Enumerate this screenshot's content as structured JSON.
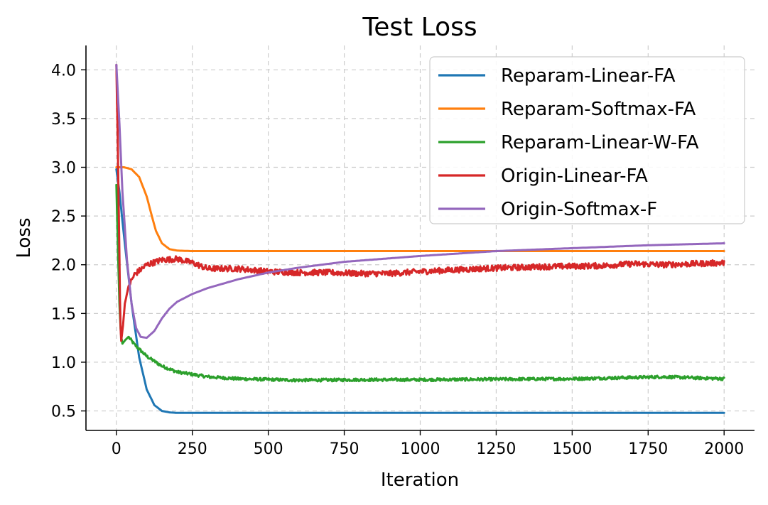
{
  "chart_data": {
    "type": "line",
    "title": "Test Loss",
    "xlabel": "Iteration",
    "ylabel": "Loss",
    "xlim": [
      -100,
      2100
    ],
    "ylim": [
      0.3,
      4.25
    ],
    "xticks": [
      0,
      250,
      500,
      750,
      1000,
      1250,
      1500,
      1750,
      2000
    ],
    "xtick_labels": [
      "0",
      "250",
      "500",
      "750",
      "1000",
      "1250",
      "1500",
      "1750",
      "2000"
    ],
    "yticks": [
      0.5,
      1.0,
      1.5,
      2.0,
      2.5,
      3.0,
      3.5,
      4.0
    ],
    "ytick_labels": [
      "0.5",
      "1.0",
      "1.5",
      "2.0",
      "2.5",
      "3.0",
      "3.5",
      "4.0"
    ],
    "grid": true,
    "legend_position": "top-right",
    "series": [
      {
        "name": "Reparam-Linear-FA",
        "color": "#1f77b4",
        "noise": 0,
        "points": [
          [
            0,
            2.98
          ],
          [
            10,
            2.75
          ],
          [
            25,
            2.3
          ],
          [
            50,
            1.6
          ],
          [
            75,
            1.05
          ],
          [
            100,
            0.72
          ],
          [
            125,
            0.56
          ],
          [
            150,
            0.5
          ],
          [
            175,
            0.485
          ],
          [
            200,
            0.48
          ],
          [
            300,
            0.48
          ],
          [
            500,
            0.48
          ],
          [
            1000,
            0.48
          ],
          [
            1500,
            0.48
          ],
          [
            2000,
            0.48
          ]
        ]
      },
      {
        "name": "Reparam-Softmax-FA",
        "color": "#ff7f0e",
        "noise": 0,
        "points": [
          [
            0,
            3.0
          ],
          [
            25,
            3.0
          ],
          [
            50,
            2.98
          ],
          [
            75,
            2.9
          ],
          [
            100,
            2.7
          ],
          [
            115,
            2.52
          ],
          [
            130,
            2.35
          ],
          [
            150,
            2.22
          ],
          [
            175,
            2.16
          ],
          [
            200,
            2.145
          ],
          [
            250,
            2.14
          ],
          [
            500,
            2.14
          ],
          [
            1000,
            2.14
          ],
          [
            1500,
            2.14
          ],
          [
            2000,
            2.14
          ]
        ]
      },
      {
        "name": "Reparam-Linear-W-FA",
        "color": "#2ca02c",
        "noise": 0.015,
        "points": [
          [
            0,
            2.82
          ],
          [
            5,
            2.2
          ],
          [
            10,
            1.6
          ],
          [
            15,
            1.28
          ],
          [
            20,
            1.19
          ],
          [
            30,
            1.23
          ],
          [
            40,
            1.26
          ],
          [
            60,
            1.18
          ],
          [
            100,
            1.06
          ],
          [
            150,
            0.96
          ],
          [
            200,
            0.9
          ],
          [
            300,
            0.85
          ],
          [
            400,
            0.83
          ],
          [
            600,
            0.815
          ],
          [
            800,
            0.82
          ],
          [
            1000,
            0.82
          ],
          [
            1500,
            0.83
          ],
          [
            1800,
            0.85
          ],
          [
            2000,
            0.83
          ]
        ]
      },
      {
        "name": "Origin-Linear-FA",
        "color": "#d62728",
        "noise": 0.03,
        "points": [
          [
            0,
            4.05
          ],
          [
            5,
            3.2
          ],
          [
            10,
            2.1
          ],
          [
            13,
            1.4
          ],
          [
            16,
            1.22
          ],
          [
            22,
            1.38
          ],
          [
            28,
            1.6
          ],
          [
            40,
            1.78
          ],
          [
            60,
            1.9
          ],
          [
            100,
            2.0
          ],
          [
            150,
            2.05
          ],
          [
            200,
            2.06
          ],
          [
            250,
            2.02
          ],
          [
            300,
            1.96
          ],
          [
            400,
            1.96
          ],
          [
            500,
            1.93
          ],
          [
            600,
            1.92
          ],
          [
            700,
            1.92
          ],
          [
            800,
            1.91
          ],
          [
            900,
            1.91
          ],
          [
            1000,
            1.93
          ],
          [
            1200,
            1.96
          ],
          [
            1400,
            1.98
          ],
          [
            1600,
            1.99
          ],
          [
            1700,
            2.01
          ],
          [
            1800,
            2.0
          ],
          [
            2000,
            2.02
          ]
        ]
      },
      {
        "name": "Origin-Softmax-F",
        "color": "#9467bd",
        "noise": 0,
        "points": [
          [
            0,
            4.05
          ],
          [
            10,
            3.45
          ],
          [
            20,
            2.75
          ],
          [
            35,
            2.05
          ],
          [
            50,
            1.6
          ],
          [
            65,
            1.35
          ],
          [
            80,
            1.26
          ],
          [
            100,
            1.25
          ],
          [
            125,
            1.32
          ],
          [
            150,
            1.45
          ],
          [
            175,
            1.55
          ],
          [
            200,
            1.62
          ],
          [
            250,
            1.7
          ],
          [
            300,
            1.76
          ],
          [
            400,
            1.85
          ],
          [
            500,
            1.92
          ],
          [
            600,
            1.97
          ],
          [
            750,
            2.03
          ],
          [
            1000,
            2.09
          ],
          [
            1250,
            2.14
          ],
          [
            1500,
            2.17
          ],
          [
            1750,
            2.2
          ],
          [
            2000,
            2.22
          ]
        ]
      }
    ]
  }
}
